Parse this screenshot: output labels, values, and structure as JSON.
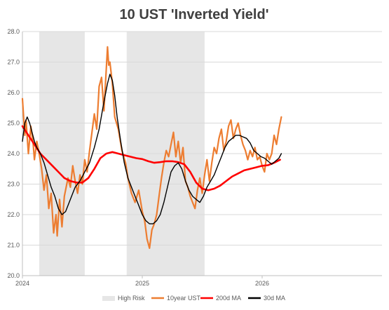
{
  "chart_data": {
    "type": "line",
    "title": "10 UST 'Inverted Yield'",
    "xlabel": "",
    "ylabel": "",
    "ylim": [
      20.0,
      28.0
    ],
    "yticks": [
      "20.0",
      "21.0",
      "22.0",
      "23.0",
      "24.0",
      "25.0",
      "26.0",
      "27.0",
      "28.0"
    ],
    "xticks": [
      {
        "label": "2024",
        "x": 0
      },
      {
        "label": "2025",
        "x": 1
      },
      {
        "label": "2026",
        "x": 2
      }
    ],
    "xlim": [
      0,
      3.0
    ],
    "x_units": "years since 2024",
    "grid": "horizontal",
    "legend_position": "bottom",
    "high_risk_periods": [
      [
        0.14,
        0.52
      ],
      [
        0.87,
        1.52
      ]
    ],
    "colors": {
      "high_risk": "#e6e6e6",
      "ten_year": "#ed7d31",
      "ma200": "#ff0000",
      "ma30": "#000000",
      "grid": "#d9d9d9",
      "axis": "#bfbfbf"
    },
    "legend": [
      "High Risk",
      "10year UST",
      "200d MA",
      "30d MA"
    ],
    "series": [
      {
        "name": "10year UST",
        "x": [
          0.0,
          0.02,
          0.03,
          0.05,
          0.07,
          0.09,
          0.1,
          0.12,
          0.14,
          0.16,
          0.18,
          0.2,
          0.22,
          0.24,
          0.26,
          0.28,
          0.29,
          0.31,
          0.33,
          0.35,
          0.38,
          0.4,
          0.42,
          0.44,
          0.46,
          0.48,
          0.5,
          0.52,
          0.54,
          0.56,
          0.58,
          0.6,
          0.62,
          0.63,
          0.64,
          0.66,
          0.68,
          0.7,
          0.71,
          0.72,
          0.73,
          0.75,
          0.77,
          0.8,
          0.83,
          0.86,
          0.88,
          0.91,
          0.94,
          0.97,
          1.0,
          1.02,
          1.04,
          1.06,
          1.08,
          1.1,
          1.12,
          1.14,
          1.16,
          1.18,
          1.2,
          1.22,
          1.24,
          1.26,
          1.28,
          1.3,
          1.32,
          1.34,
          1.36,
          1.38,
          1.4,
          1.42,
          1.44,
          1.46,
          1.48,
          1.5,
          1.52,
          1.54,
          1.56,
          1.58,
          1.6,
          1.62,
          1.64,
          1.66,
          1.68,
          1.7,
          1.72,
          1.74,
          1.76,
          1.78,
          1.8,
          1.82,
          1.84,
          1.86,
          1.88,
          1.9,
          1.92,
          1.94,
          1.96,
          1.98,
          2.0,
          2.02,
          2.04,
          2.06,
          2.08,
          2.1,
          2.12,
          2.14,
          2.16
        ],
        "values": [
          25.8,
          24.6,
          25.1,
          24.0,
          24.9,
          24.3,
          23.8,
          24.4,
          24.0,
          23.5,
          22.8,
          23.3,
          22.2,
          22.7,
          21.4,
          22.0,
          21.3,
          22.5,
          21.6,
          22.6,
          23.2,
          22.9,
          23.6,
          23.1,
          22.7,
          23.3,
          23.0,
          23.8,
          23.4,
          24.1,
          24.7,
          25.3,
          24.8,
          25.5,
          26.2,
          26.5,
          25.4,
          26.8,
          27.5,
          26.9,
          27.0,
          26.3,
          25.2,
          24.8,
          24.1,
          23.7,
          23.2,
          22.7,
          22.4,
          22.8,
          22.1,
          21.8,
          21.2,
          20.9,
          21.5,
          21.7,
          22.0,
          22.6,
          23.2,
          23.7,
          24.1,
          23.9,
          24.3,
          24.7,
          23.9,
          24.4,
          23.7,
          24.2,
          23.1,
          22.9,
          22.6,
          22.4,
          22.2,
          22.8,
          23.2,
          22.7,
          23.3,
          23.8,
          23.1,
          23.7,
          24.2,
          24.0,
          24.5,
          24.8,
          24.1,
          24.4,
          24.9,
          25.1,
          24.5,
          24.8,
          25.0,
          24.6,
          24.3,
          24.1,
          23.8,
          24.1,
          23.9,
          24.2,
          23.8,
          23.9,
          23.6,
          23.4,
          24.0,
          23.8,
          24.0,
          24.6,
          24.3,
          24.8,
          25.2
        ]
      },
      {
        "name": "200d MA",
        "x": [
          0.0,
          0.05,
          0.1,
          0.15,
          0.2,
          0.25,
          0.3,
          0.35,
          0.4,
          0.45,
          0.5,
          0.55,
          0.6,
          0.65,
          0.7,
          0.75,
          0.8,
          0.85,
          0.9,
          0.95,
          1.0,
          1.05,
          1.1,
          1.15,
          1.2,
          1.25,
          1.3,
          1.35,
          1.4,
          1.45,
          1.5,
          1.55,
          1.6,
          1.65,
          1.7,
          1.75,
          1.8,
          1.85,
          1.9,
          1.95,
          2.0,
          2.05,
          2.1,
          2.15
        ],
        "values": [
          24.9,
          24.6,
          24.3,
          24.0,
          23.8,
          23.6,
          23.4,
          23.2,
          23.1,
          23.05,
          23.05,
          23.2,
          23.5,
          23.85,
          24.0,
          24.05,
          24.0,
          23.95,
          23.9,
          23.85,
          23.82,
          23.75,
          23.7,
          23.72,
          23.75,
          23.75,
          23.72,
          23.65,
          23.4,
          23.05,
          22.85,
          22.8,
          22.85,
          22.95,
          23.1,
          23.25,
          23.35,
          23.45,
          23.5,
          23.55,
          23.6,
          23.62,
          23.7,
          23.8
        ]
      },
      {
        "name": "30d MA",
        "x": [
          0.0,
          0.02,
          0.04,
          0.06,
          0.08,
          0.1,
          0.12,
          0.15,
          0.18,
          0.21,
          0.24,
          0.27,
          0.3,
          0.33,
          0.36,
          0.4,
          0.44,
          0.48,
          0.52,
          0.56,
          0.6,
          0.64,
          0.68,
          0.71,
          0.73,
          0.75,
          0.77,
          0.79,
          0.82,
          0.85,
          0.88,
          0.91,
          0.94,
          0.97,
          1.0,
          1.03,
          1.06,
          1.09,
          1.12,
          1.15,
          1.18,
          1.21,
          1.24,
          1.27,
          1.3,
          1.33,
          1.36,
          1.39,
          1.42,
          1.45,
          1.48,
          1.51,
          1.54,
          1.57,
          1.6,
          1.63,
          1.66,
          1.69,
          1.72,
          1.75,
          1.78,
          1.81,
          1.84,
          1.87,
          1.9,
          1.93,
          1.96,
          1.99,
          2.02,
          2.05,
          2.08,
          2.11,
          2.14,
          2.16
        ],
        "values": [
          24.4,
          25.0,
          25.2,
          25.0,
          24.7,
          24.4,
          24.2,
          24.0,
          23.7,
          23.3,
          22.9,
          22.6,
          22.2,
          22.0,
          22.1,
          22.5,
          22.9,
          23.1,
          23.4,
          23.7,
          24.2,
          24.8,
          25.7,
          26.3,
          26.6,
          26.4,
          25.9,
          25.2,
          24.4,
          23.7,
          23.2,
          22.9,
          22.6,
          22.3,
          22.0,
          21.8,
          21.7,
          21.7,
          21.8,
          22.0,
          22.4,
          22.9,
          23.4,
          23.6,
          23.7,
          23.5,
          23.1,
          22.8,
          22.6,
          22.5,
          22.4,
          22.6,
          22.9,
          23.1,
          23.3,
          23.6,
          23.9,
          24.2,
          24.4,
          24.5,
          24.6,
          24.6,
          24.55,
          24.5,
          24.35,
          24.1,
          24.0,
          23.9,
          23.85,
          23.75,
          23.65,
          23.75,
          23.85,
          24.0
        ]
      }
    ]
  }
}
